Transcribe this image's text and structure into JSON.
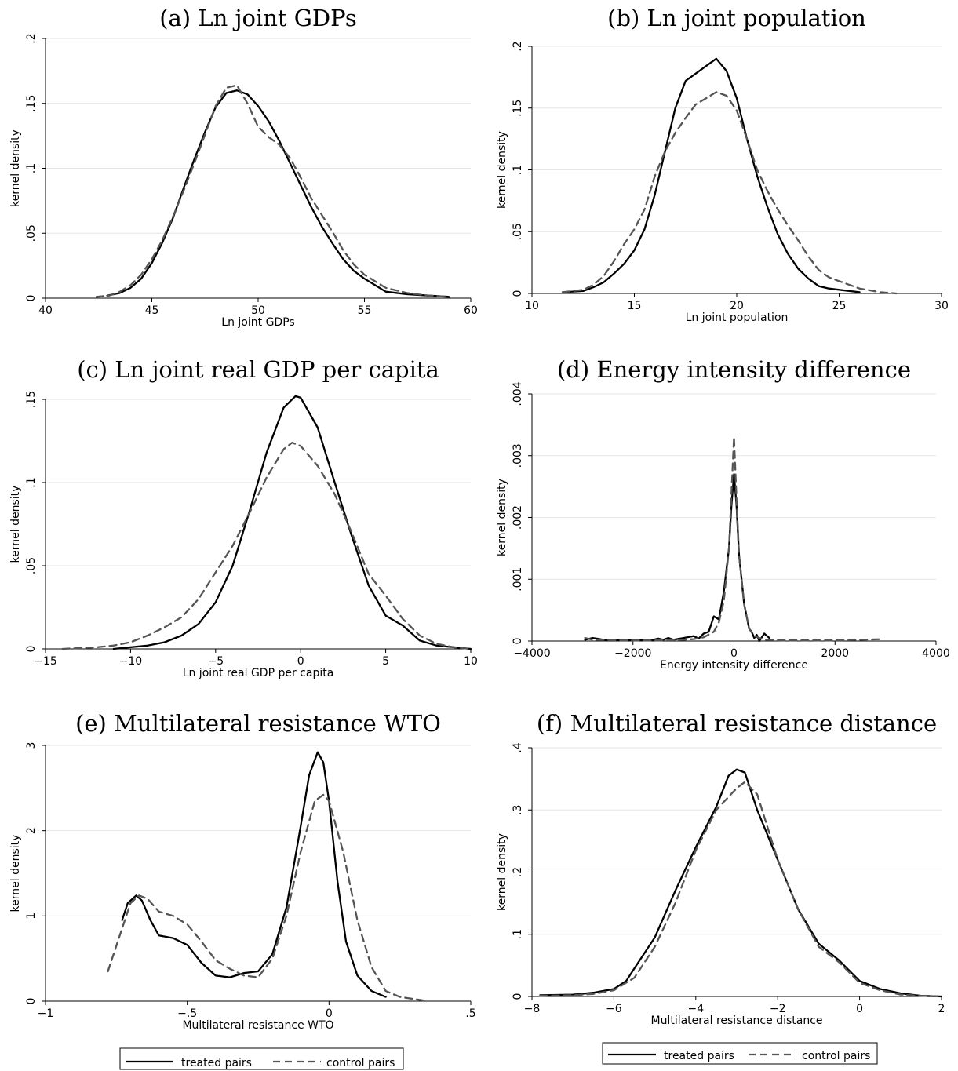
{
  "legend": {
    "treated": "treated pairs",
    "control": "control pairs"
  },
  "colors": {
    "treated": "#000000",
    "control": "#555555",
    "grid": "#e6e6e6"
  },
  "chart_data": [
    {
      "type": "line",
      "title": "(a) Ln joint GDPs",
      "xlabel": "Ln joint GDPs",
      "ylabel": "kernel density",
      "xlim": [
        40,
        60
      ],
      "ylim": [
        0,
        0.2
      ],
      "xticks": [
        40,
        45,
        50,
        55,
        60
      ],
      "xticklabels": [
        "40",
        "45",
        "50",
        "55",
        "60"
      ],
      "yticks": [
        0,
        0.05,
        0.1,
        0.15,
        0.2
      ],
      "yticklabels": [
        "0",
        ".05",
        ".1",
        ".15",
        ".2"
      ],
      "series": [
        {
          "name": "treated pairs",
          "x": [
            42.9,
            43.5,
            44,
            44.5,
            45,
            45.5,
            46,
            46.5,
            47,
            47.5,
            48,
            48.5,
            49,
            49.5,
            50,
            50.5,
            51,
            51.5,
            52,
            52.5,
            53,
            53.5,
            54,
            54.5,
            55,
            55.5,
            56,
            57,
            58,
            59
          ],
          "y": [
            0.002,
            0.004,
            0.008,
            0.015,
            0.027,
            0.043,
            0.062,
            0.085,
            0.107,
            0.128,
            0.147,
            0.158,
            0.16,
            0.157,
            0.148,
            0.136,
            0.121,
            0.104,
            0.087,
            0.07,
            0.055,
            0.042,
            0.03,
            0.021,
            0.015,
            0.01,
            0.005,
            0.003,
            0.002,
            0.001
          ]
        },
        {
          "name": "control pairs",
          "x": [
            42.4,
            43,
            43.5,
            44,
            44.5,
            45,
            45.5,
            46,
            46.5,
            47,
            47.5,
            48,
            48.5,
            49,
            49.5,
            50,
            50.5,
            51,
            51.5,
            52,
            52.5,
            53,
            53.5,
            54,
            54.5,
            55,
            55.5,
            56,
            57,
            58,
            59
          ],
          "y": [
            0.001,
            0.002,
            0.005,
            0.01,
            0.018,
            0.03,
            0.045,
            0.063,
            0.083,
            0.104,
            0.126,
            0.148,
            0.162,
            0.164,
            0.15,
            0.132,
            0.124,
            0.118,
            0.108,
            0.093,
            0.077,
            0.064,
            0.051,
            0.037,
            0.026,
            0.018,
            0.013,
            0.008,
            0.004,
            0.002,
            0.001
          ]
        }
      ]
    },
    {
      "type": "line",
      "title": "(b) Ln joint population",
      "xlabel": "Ln joint population",
      "ylabel": "kernel density",
      "xlim": [
        10,
        30
      ],
      "ylim": [
        0,
        0.2
      ],
      "xticks": [
        10,
        15,
        20,
        25,
        30
      ],
      "xticklabels": [
        "10",
        "15",
        "20",
        "25",
        "30"
      ],
      "yticks": [
        0,
        0.05,
        0.1,
        0.15,
        0.2
      ],
      "yticklabels": [
        "0",
        ".05",
        ".1",
        ".15",
        ".2"
      ],
      "series": [
        {
          "name": "treated pairs",
          "x": [
            11.5,
            12.5,
            13,
            13.5,
            14,
            14.5,
            15,
            15.5,
            16,
            16.5,
            17,
            17.5,
            18,
            18.5,
            19,
            19.5,
            20,
            20.5,
            21,
            21.5,
            22,
            22.5,
            23,
            23.5,
            24,
            24.5,
            25,
            26
          ],
          "y": [
            0.001,
            0.002,
            0.005,
            0.009,
            0.016,
            0.024,
            0.035,
            0.052,
            0.08,
            0.115,
            0.15,
            0.172,
            0.178,
            0.184,
            0.19,
            0.18,
            0.158,
            0.125,
            0.095,
            0.07,
            0.048,
            0.032,
            0.02,
            0.012,
            0.006,
            0.004,
            0.003,
            0.001
          ]
        },
        {
          "name": "control pairs",
          "x": [
            11.5,
            12.5,
            13,
            13.5,
            14,
            14.5,
            15,
            15.5,
            16,
            16.5,
            17,
            17.5,
            18,
            18.5,
            19,
            19.5,
            20,
            20.5,
            21,
            21.5,
            22,
            22.5,
            23,
            23.5,
            24,
            24.5,
            25,
            26,
            27,
            27.8
          ],
          "y": [
            0.001,
            0.003,
            0.007,
            0.014,
            0.026,
            0.04,
            0.052,
            0.068,
            0.095,
            0.115,
            0.13,
            0.142,
            0.153,
            0.158,
            0.163,
            0.16,
            0.148,
            0.125,
            0.1,
            0.083,
            0.068,
            0.055,
            0.043,
            0.03,
            0.019,
            0.013,
            0.01,
            0.004,
            0.001,
            0.0
          ]
        }
      ]
    },
    {
      "type": "line",
      "title": "(c) Ln joint real GDP per capita",
      "xlabel": "Ln joint real GDP per capita",
      "ylabel": "kernel density",
      "xlim": [
        -15,
        10
      ],
      "ylim": [
        0,
        0.15
      ],
      "xticks": [
        -15,
        -10,
        -5,
        0,
        5,
        10
      ],
      "xticklabels": [
        "−15",
        "−10",
        "−5",
        "0",
        "5",
        "10"
      ],
      "yticks": [
        0,
        0.05,
        0.1,
        0.15
      ],
      "yticklabels": [
        "0",
        ".05",
        ".1",
        ".15"
      ],
      "series": [
        {
          "name": "treated pairs",
          "x": [
            -11,
            -10,
            -9,
            -8,
            -7,
            -6,
            -5,
            -4,
            -3,
            -2,
            -1,
            -0.3,
            0,
            1,
            2,
            3,
            4,
            5,
            6,
            7,
            8,
            9,
            10
          ],
          "y": [
            0.0,
            0.001,
            0.002,
            0.004,
            0.008,
            0.015,
            0.028,
            0.05,
            0.083,
            0.118,
            0.145,
            0.152,
            0.151,
            0.133,
            0.1,
            0.068,
            0.038,
            0.02,
            0.014,
            0.005,
            0.002,
            0.001,
            0.0
          ]
        },
        {
          "name": "control pairs",
          "x": [
            -14,
            -12,
            -11,
            -10,
            -9,
            -8,
            -7,
            -6,
            -5,
            -4,
            -3,
            -2,
            -1,
            -0.5,
            0,
            1,
            2,
            3,
            4,
            5,
            6,
            7,
            8,
            9,
            10
          ],
          "y": [
            0.0,
            0.001,
            0.002,
            0.004,
            0.008,
            0.013,
            0.019,
            0.03,
            0.046,
            0.062,
            0.082,
            0.103,
            0.12,
            0.124,
            0.122,
            0.11,
            0.093,
            0.07,
            0.045,
            0.032,
            0.018,
            0.008,
            0.003,
            0.001,
            0.0
          ]
        }
      ]
    },
    {
      "type": "line",
      "title": "(d) Energy intensity difference",
      "xlabel": "Energy intensity difference",
      "ylabel": "kernel density",
      "xlim": [
        -4000,
        4000
      ],
      "ylim": [
        0,
        0.004
      ],
      "xticks": [
        -4000,
        -2000,
        0,
        2000,
        4000
      ],
      "xticklabels": [
        "−4000",
        "−2000",
        "0",
        "2000",
        "4000"
      ],
      "yticks": [
        0,
        0.001,
        0.002,
        0.003,
        0.004
      ],
      "yticklabels": [
        "0",
        ".001",
        ".002",
        ".003",
        ".004"
      ],
      "series": [
        {
          "name": "treated pairs",
          "x": [
            -2950,
            -2800,
            -2500,
            -2000,
            -1600,
            -1500,
            -1400,
            -1300,
            -1200,
            -1000,
            -800,
            -700,
            -600,
            -500,
            -400,
            -300,
            -200,
            -100,
            -50,
            0,
            50,
            100,
            200,
            300,
            350,
            400,
            450,
            500,
            600,
            700
          ],
          "y": [
            2e-05,
            5e-05,
            1e-05,
            1e-05,
            2e-05,
            4e-05,
            2e-05,
            5e-05,
            2e-05,
            5e-05,
            8e-05,
            4e-05,
            0.00012,
            0.00015,
            0.0004,
            0.00035,
            0.0008,
            0.0015,
            0.0022,
            0.0027,
            0.0022,
            0.0014,
            0.0006,
            0.0002,
            0.00015,
            5e-05,
            0.0001,
            0.0,
            0.00012,
            5e-05
          ]
        },
        {
          "name": "control pairs",
          "x": [
            -2950,
            -2800,
            -2000,
            -1500,
            -1000,
            -800,
            -600,
            -400,
            -300,
            -200,
            -100,
            -50,
            0,
            50,
            100,
            200,
            300,
            400,
            600,
            1000,
            2000,
            2950
          ],
          "y": [
            5e-05,
            2e-05,
            1e-05,
            1e-05,
            2e-05,
            3e-05,
            6e-05,
            0.00015,
            0.0003,
            0.00065,
            0.0015,
            0.0024,
            0.0033,
            0.0023,
            0.0014,
            0.0006,
            0.0002,
            8e-05,
            2e-05,
            1e-05,
            1e-05,
            3e-05
          ]
        }
      ]
    },
    {
      "type": "line",
      "title": "(e) Multilateral resistance WTO",
      "xlabel": "Multilateral resistance WTO",
      "ylabel": "kernel density",
      "xlim": [
        -1,
        0.5
      ],
      "ylim": [
        0,
        3
      ],
      "xticks": [
        -1,
        -0.5,
        0,
        0.5
      ],
      "xticklabels": [
        "−1",
        "−.5",
        "0",
        ".5"
      ],
      "yticks": [
        0,
        1,
        2,
        3
      ],
      "yticklabels": [
        "0",
        "1",
        "2",
        "3"
      ],
      "series": [
        {
          "name": "treated pairs",
          "x": [
            -0.73,
            -0.71,
            -0.68,
            -0.66,
            -0.63,
            -0.6,
            -0.55,
            -0.5,
            -0.45,
            -0.4,
            -0.35,
            -0.3,
            -0.25,
            -0.2,
            -0.15,
            -0.1,
            -0.07,
            -0.04,
            -0.02,
            0,
            0.03,
            0.06,
            0.1,
            0.15,
            0.2
          ],
          "y": [
            0.95,
            1.15,
            1.24,
            1.18,
            0.95,
            0.77,
            0.74,
            0.66,
            0.45,
            0.3,
            0.28,
            0.33,
            0.35,
            0.55,
            1.1,
            2.05,
            2.65,
            2.92,
            2.8,
            2.35,
            1.4,
            0.7,
            0.3,
            0.12,
            0.05
          ]
        },
        {
          "name": "control pairs",
          "x": [
            -0.78,
            -0.74,
            -0.7,
            -0.67,
            -0.64,
            -0.6,
            -0.55,
            -0.5,
            -0.45,
            -0.4,
            -0.35,
            -0.3,
            -0.25,
            -0.2,
            -0.15,
            -0.1,
            -0.05,
            -0.02,
            0,
            0.05,
            0.1,
            0.15,
            0.2,
            0.25,
            0.35
          ],
          "y": [
            0.35,
            0.75,
            1.15,
            1.24,
            1.2,
            1.05,
            1.0,
            0.9,
            0.7,
            0.48,
            0.38,
            0.3,
            0.28,
            0.5,
            1.0,
            1.75,
            2.35,
            2.42,
            2.35,
            1.75,
            0.95,
            0.4,
            0.12,
            0.05,
            0.0
          ]
        }
      ]
    },
    {
      "type": "line",
      "title": "(f) Multilateral resistance distance",
      "xlabel": "Multilateral resistance distance",
      "ylabel": "kernel density",
      "xlim": [
        -8,
        2
      ],
      "ylim": [
        0,
        0.4
      ],
      "xticks": [
        -8,
        -6,
        -4,
        -2,
        0,
        2
      ],
      "xticklabels": [
        "−8",
        "−6",
        "−4",
        "−2",
        "0",
        "2"
      ],
      "yticks": [
        0,
        0.1,
        0.2,
        0.3,
        0.4
      ],
      "yticklabels": [
        "0",
        ".1",
        ".2",
        ".3",
        ".4"
      ],
      "series": [
        {
          "name": "treated pairs",
          "x": [
            -7.8,
            -7,
            -6.5,
            -6,
            -5.7,
            -5.5,
            -5,
            -4.5,
            -4,
            -3.5,
            -3.2,
            -3,
            -2.8,
            -2.5,
            -2,
            -1.5,
            -1,
            -0.5,
            0,
            0.5,
            1,
            1.5,
            2
          ],
          "y": [
            0.002,
            0.003,
            0.006,
            0.012,
            0.025,
            0.045,
            0.095,
            0.17,
            0.24,
            0.305,
            0.355,
            0.365,
            0.36,
            0.3,
            0.22,
            0.14,
            0.085,
            0.058,
            0.025,
            0.012,
            0.005,
            0.001,
            0.0
          ]
        },
        {
          "name": "control pairs",
          "x": [
            -7.8,
            -7,
            -6.5,
            -6,
            -5.5,
            -5,
            -4.5,
            -4,
            -3.5,
            -3,
            -2.8,
            -2.5,
            -2,
            -1.5,
            -1,
            -0.5,
            0,
            0.5,
            1,
            1.5,
            2
          ],
          "y": [
            0.001,
            0.002,
            0.004,
            0.01,
            0.03,
            0.08,
            0.15,
            0.235,
            0.3,
            0.335,
            0.345,
            0.325,
            0.22,
            0.14,
            0.08,
            0.055,
            0.022,
            0.01,
            0.003,
            0.001,
            0.0
          ]
        }
      ]
    }
  ]
}
